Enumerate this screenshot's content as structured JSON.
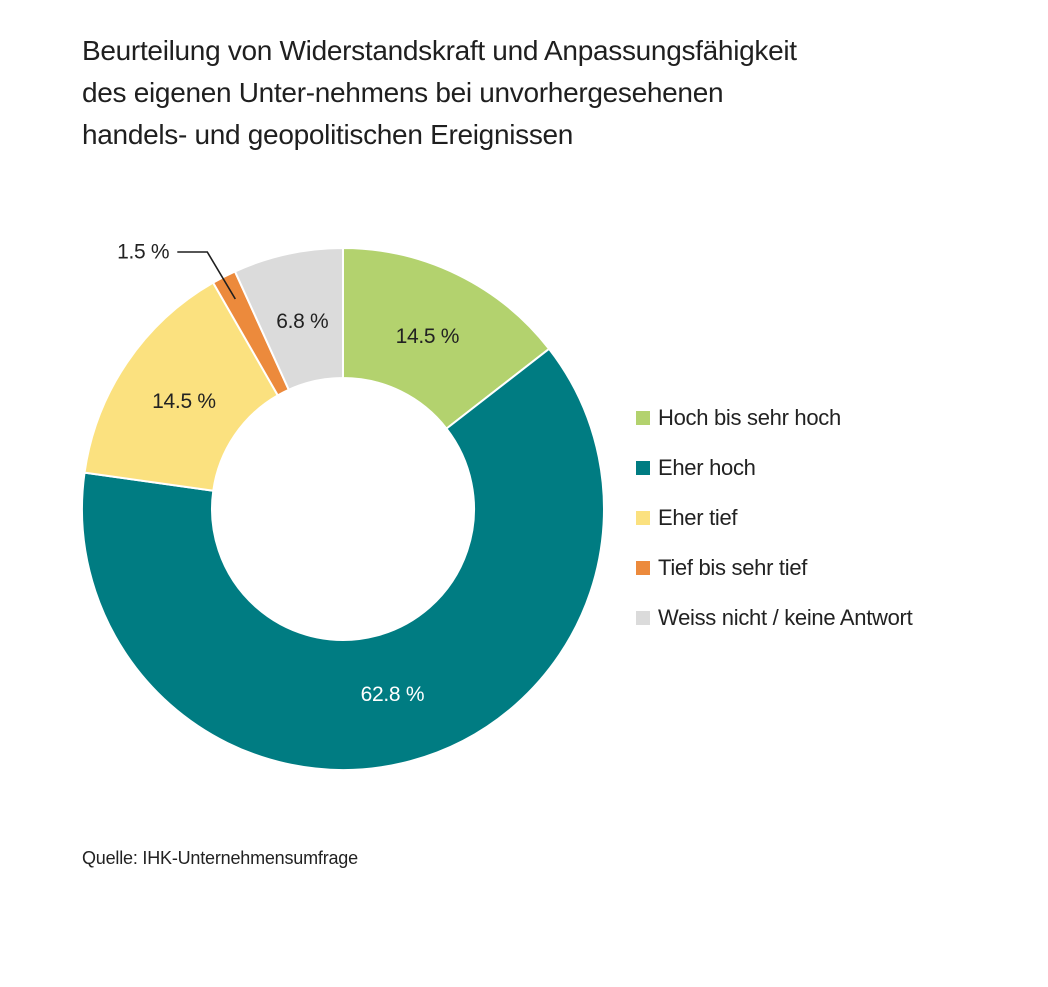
{
  "chart_data": {
    "type": "pie",
    "variant": "donut",
    "title_lines": [
      "Beurteilung von Widerstandskraft und Anpassungsfähigkeit",
      "des eigenen Unter-nehmens bei unvorhergesehenen",
      "handels- und geopolitischen Ereignissen"
    ],
    "slices": [
      {
        "name": "Hoch bis sehr hoch",
        "value": 14.5,
        "label": "14.5 %",
        "color": "#b3d26e",
        "label_color": "#222222"
      },
      {
        "name": "Eher hoch",
        "value": 62.8,
        "label": "62.8 %",
        "color": "#007c82",
        "label_color": "#ffffff"
      },
      {
        "name": "Eher tief",
        "value": 14.5,
        "label": "14.5 %",
        "color": "#fbe17f",
        "label_color": "#222222"
      },
      {
        "name": "Tief bis sehr tief",
        "value": 1.5,
        "label": "1.5 %",
        "color": "#ec8a3c",
        "label_color": "#222222",
        "callout": true
      },
      {
        "name": "Weiss nicht / keine Antwort",
        "value": 6.8,
        "label": "6.8 %",
        "color": "#dbdbdb",
        "label_color": "#222222"
      }
    ],
    "legend_position": "right",
    "source": "Quelle: IHK-Unternehmensumfrage"
  }
}
